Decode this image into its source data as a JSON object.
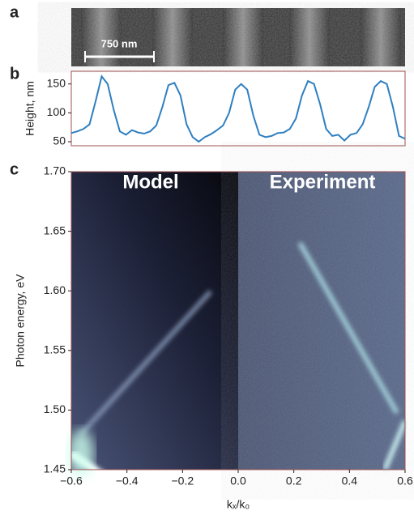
{
  "panel_labels": [
    "a",
    "b",
    "c"
  ],
  "scale_bar": "750 nm",
  "chart_data": [
    {
      "type": "line",
      "ylabel": "Height, nm",
      "color": "#2f7fc0",
      "values": [
        65,
        68,
        72,
        80,
        120,
        163,
        150,
        105,
        68,
        62,
        70,
        66,
        64,
        68,
        78,
        110,
        148,
        152,
        130,
        80,
        58,
        50,
        58,
        63,
        70,
        78,
        100,
        140,
        150,
        140,
        95,
        62,
        58,
        60,
        65,
        66,
        72,
        90,
        130,
        155,
        150,
        115,
        72,
        60,
        62,
        52,
        62,
        65,
        80,
        110,
        145,
        155,
        150,
        110,
        60,
        55
      ],
      "ylim": [
        43,
        172
      ],
      "yticks": [
        50,
        100,
        150
      ]
    },
    {
      "type": "heatmap",
      "xlabel": "kₓ/k₀",
      "ylabel": "Photon energy, eV",
      "annotations": [
        "Model",
        "Experiment"
      ],
      "xlim": [
        -0.6,
        0.6
      ],
      "ylim": [
        1.45,
        1.7
      ],
      "xticks": [
        {
          "value": -0.6,
          "label": "−0.6"
        },
        {
          "value": -0.4,
          "label": "−0.4"
        },
        {
          "value": -0.2,
          "label": "−0.2"
        },
        {
          "value": 0,
          "label": "0.0"
        },
        0.2,
        0.4,
        0.6
      ],
      "yticks": [
        1.45,
        {
          "value": 1.5,
          "label": "1.50"
        },
        1.55,
        {
          "value": 1.6,
          "label": "1.60"
        },
        1.65,
        {
          "value": 1.7,
          "label": "1.70"
        }
      ]
    }
  ]
}
